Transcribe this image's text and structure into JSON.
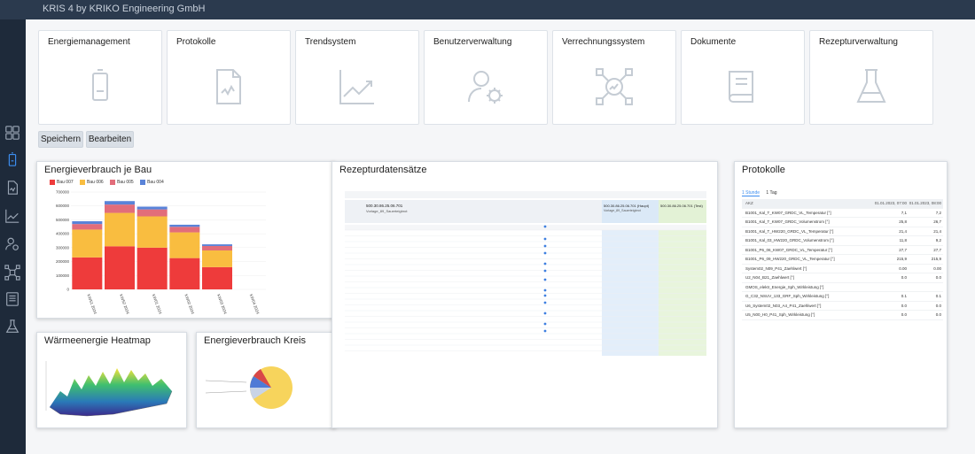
{
  "app": {
    "title": "KRIS 4 by KRIKO Engineering GmbH"
  },
  "sidebar": {
    "items": [
      {
        "name": "modules-icon"
      },
      {
        "name": "battery-icon"
      },
      {
        "name": "document-icon"
      },
      {
        "name": "trend-icon"
      },
      {
        "name": "user-settings-icon"
      },
      {
        "name": "network-icon"
      },
      {
        "name": "book-icon"
      },
      {
        "name": "flask-icon"
      }
    ]
  },
  "tiles": [
    {
      "label": "Energiemanagement",
      "icon": "battery-icon"
    },
    {
      "label": "Protokolle",
      "icon": "document-icon"
    },
    {
      "label": "Trendsystem",
      "icon": "trend-icon"
    },
    {
      "label": "Benutzerverwaltung",
      "icon": "user-settings-icon"
    },
    {
      "label": "Verrechnungssystem",
      "icon": "network-icon"
    },
    {
      "label": "Dokumente",
      "icon": "book-icon"
    },
    {
      "label": "Rezepturverwaltung",
      "icon": "flask-icon"
    }
  ],
  "toolbar": {
    "save_label": "Speichern",
    "edit_label": "Bearbeiten"
  },
  "cards": {
    "energy_by_building": "Energieverbrauch je Bau",
    "recipes": "Rezepturdatensätze",
    "protocols": "Protokolle",
    "heatmap": "Wärmeenergie Heatmap",
    "pie": "Energieverbrauch Kreis"
  },
  "chart_data": {
    "type": "bar",
    "stacked": true,
    "categories": [
      "KW51 2024",
      "KW52 2024",
      "KW01 2024",
      "KW02 2024",
      "KW03 2024",
      "KW04 2024"
    ],
    "series": [
      {
        "name": "Bau 007",
        "color": "#ee3b3b",
        "values": [
          230000,
          310000,
          300000,
          225000,
          160000,
          0
        ]
      },
      {
        "name": "Bau 006",
        "color": "#f9bd40",
        "values": [
          200000,
          240000,
          225000,
          185000,
          120000,
          0
        ]
      },
      {
        "name": "Bau 005",
        "color": "#e26d7a",
        "values": [
          40000,
          60000,
          50000,
          40000,
          32000,
          0
        ]
      },
      {
        "name": "Bau 004",
        "color": "#5a83d8",
        "values": [
          20000,
          25000,
          20000,
          15000,
          12000,
          0
        ]
      }
    ],
    "yticks": [
      "0",
      "100000",
      "200000",
      "300000",
      "400000",
      "500000",
      "600000",
      "700000"
    ],
    "ylim": [
      0,
      700000
    ],
    "legend": "top-left"
  },
  "protocols_panel": {
    "tabs": [
      "1 Stunde",
      "1 Tag"
    ],
    "columns": [
      "AKZ",
      "01.01.2023, 07:00",
      "01.01.2023, 08:00"
    ],
    "rows": [
      [
        "B1001_Kal_T_KW07_GRDC_VL_Temperatur [°]",
        "7,1",
        "7,2"
      ],
      [
        "B1001_Kal_T_KW07_GRDC_Volumenstrom [°]",
        "25,8",
        "26,7"
      ],
      [
        "B1001_Kal_T_HW220_GRDC_VL_Temperatur [°]",
        "21,4",
        "21,4"
      ],
      [
        "B1001_Kal_03_HW220_GRDC_Volumenstrom [°]",
        "11,8",
        "9,2"
      ],
      [
        "B1001_P6_06_KW07_GRDC_VL_Temperatur [°]",
        "27,7",
        "27,7"
      ],
      [
        "B1001_P6_09_HW220_GRDC_VL_Temperatur [°]",
        "215,9",
        "215,9"
      ],
      [
        "System02_N09_P41_Zaehlwert [°]",
        "0.00",
        "0.00"
      ],
      [
        "U2_N04_B21_Zaehlwert [°]",
        "0.0",
        "0.0"
      ],
      [
        "GMOS_elektr_Energie_Sph_Wirkleistung [°]",
        "",
        ""
      ],
      [
        "G_C32_NSUV_133_GRF_Sph_Wirkleistung [°]",
        "0.1",
        "0.1"
      ],
      [
        "U6_System02_N03_A4_P41_Zaehlwert [°]",
        "0.0",
        "0.0"
      ],
      [
        "U5_N00_H0_P41_Sph_Wirkleistung [°]",
        "0.0",
        "0.0"
      ]
    ]
  },
  "recipe_panel": {
    "header_a": "500.30.86.25.06.701",
    "header_b": "Vorlage_89_Sauerteigbrot",
    "col_title": "500.30.86.25.06.701 (Haupt)",
    "col_sub": "Vorlage_89_Sauerteigbrot",
    "col_title2": "500.30.86.25.06.701 (Test)"
  }
}
